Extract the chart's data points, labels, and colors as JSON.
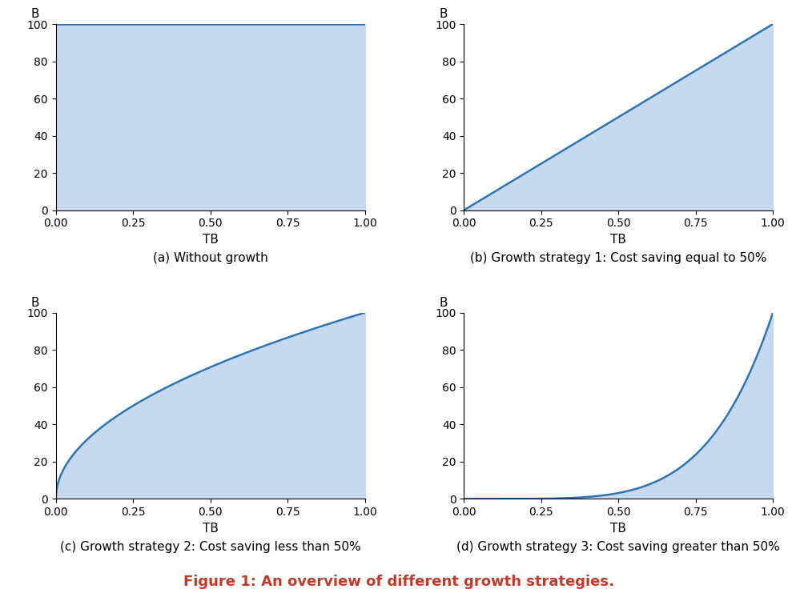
{
  "title": "Figure 1: An overview of different growth strategies.",
  "title_fontsize": 13,
  "title_fontweight": "bold",
  "title_color": "#c0392b",
  "subplot_captions": [
    "(a) Without growth",
    "(b) Growth strategy 1: Cost saving equal to 50%",
    "(c) Growth strategy 2: Cost saving less than 50%",
    "(d) Growth strategy 3: Cost saving greater than 50%"
  ],
  "xlabel": "TB",
  "ylabel": "B",
  "xlim": [
    0.0,
    1.0
  ],
  "ylim": [
    0.0,
    100.0
  ],
  "xticks": [
    0.0,
    0.25,
    0.5,
    0.75,
    1.0
  ],
  "yticks": [
    0,
    20,
    40,
    60,
    80,
    100
  ],
  "fill_color": "#c6d9f0",
  "line_color": "#2e75b6",
  "line_width": 1.8,
  "caption_fontsize": 11,
  "axis_label_fontsize": 11,
  "tick_fontsize": 10,
  "n_points": 500,
  "exponent_concave": 0.5,
  "exponent_convex": 5.0
}
